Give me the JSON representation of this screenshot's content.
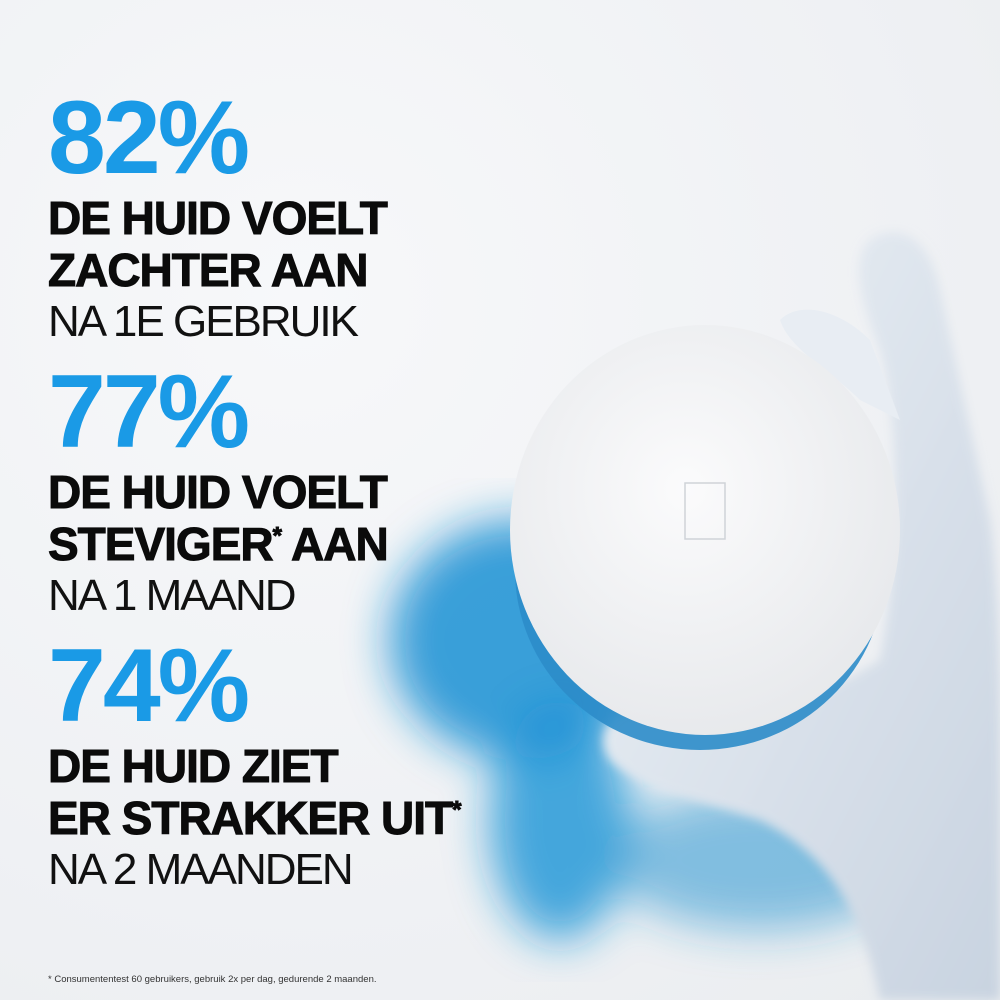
{
  "stats": [
    {
      "percent": "82%",
      "line1": "DE HUID VOELT",
      "line2": "ZACHTER AAN",
      "line2_mark": "",
      "line3": "NA 1E GEBRUIK"
    },
    {
      "percent": "77%",
      "line1": "DE HUID VOELT",
      "line2": "STEVIGER",
      "line2_mark": "*",
      "line2_rest": " AAN",
      "line3": "NA 1 MAAND"
    },
    {
      "percent": "74%",
      "line1": "DE HUID ZIET",
      "line2": "ER STRAKKER UIT",
      "line2_mark": "*",
      "line3": "NA 2 MAANDEN"
    }
  ],
  "footnote": "* Consumententest 60 gebruikers, gebruik 2x per dag, gedurende 2 maanden.",
  "colors": {
    "accent": "#1a9ae6",
    "text": "#0b0b0b",
    "background": "#f1f2f4"
  },
  "product": {
    "image": "white-jar-lid-held-by-gloved-hand"
  }
}
